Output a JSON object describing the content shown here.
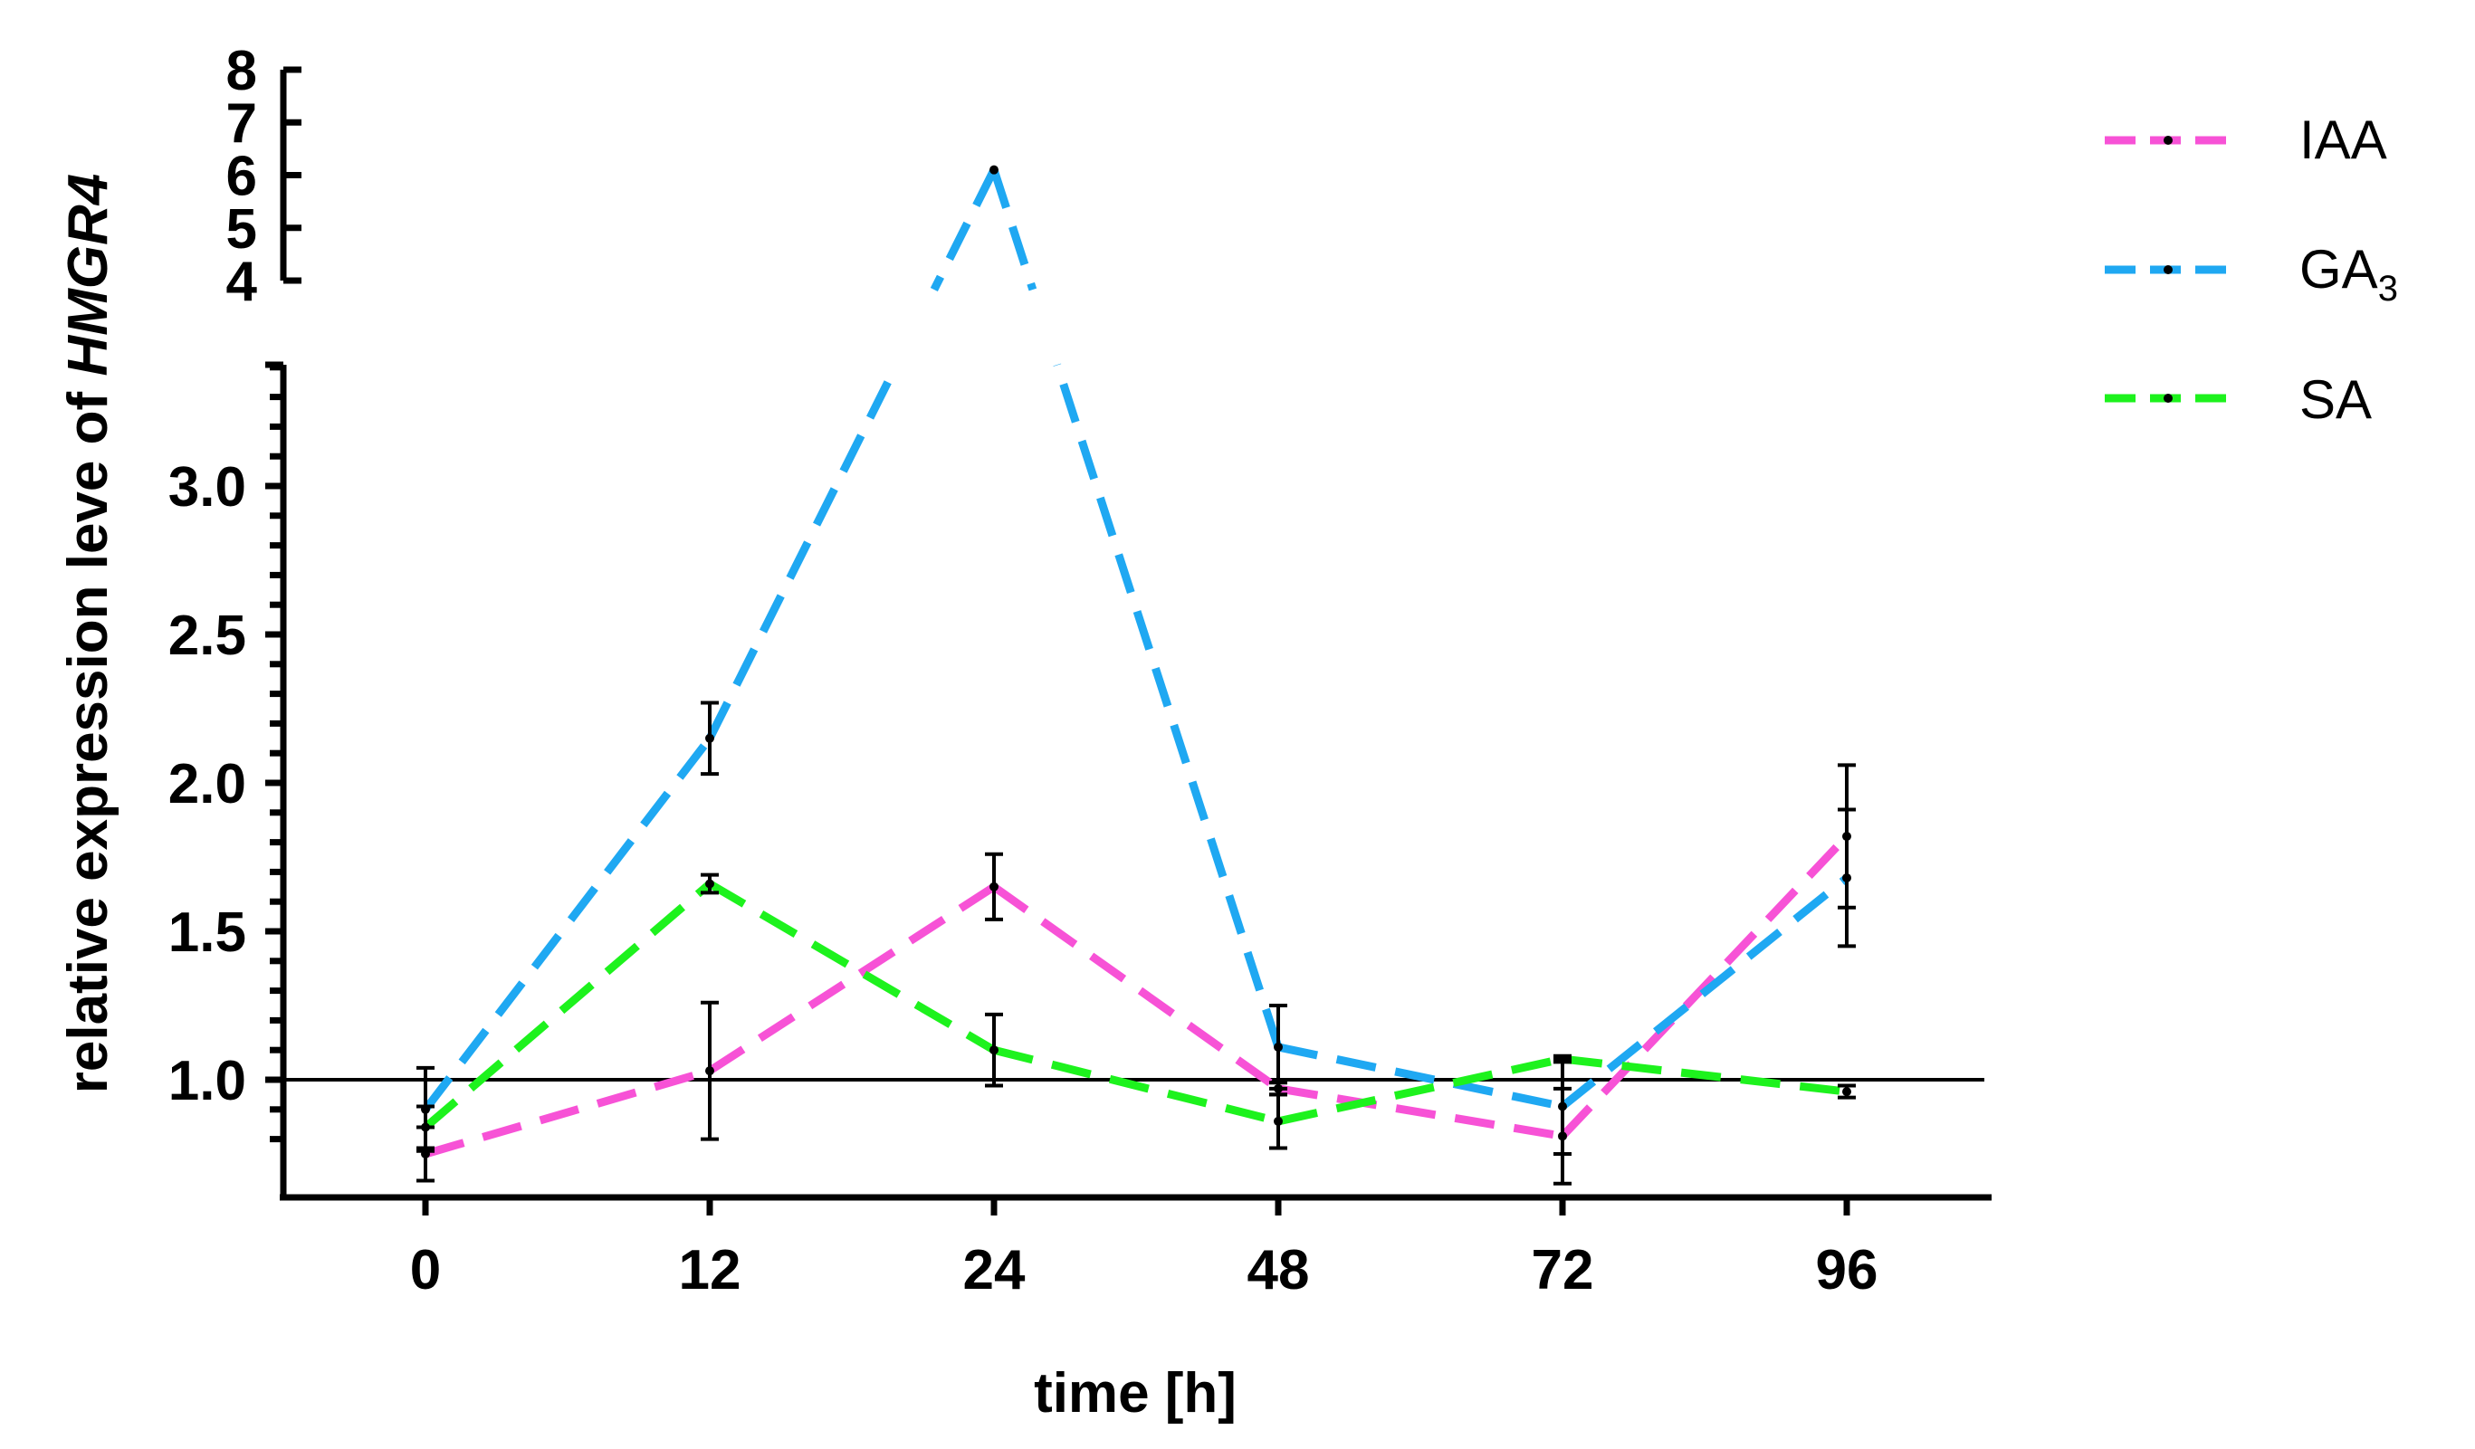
{
  "chart_data": {
    "type": "line",
    "xlabel": "time [h]",
    "ylabel_prefix": "relative expression leve of ",
    "ylabel_gene": "HMGR4",
    "categories": [
      "0",
      "12",
      "24",
      "48",
      "72",
      "96"
    ],
    "ylim_lower": [
      0.7,
      3.4
    ],
    "ylim_upper": [
      4,
      8
    ],
    "y_ticks_lower": [
      "1.0",
      "1.5",
      "2.0",
      "2.5",
      "3.0"
    ],
    "y_ticks_upper": [
      "4",
      "5",
      "6",
      "7",
      "8"
    ],
    "reference_line": 1.0,
    "legend_position": "top-right",
    "series": [
      {
        "name": "IAA",
        "color": "#f752d6",
        "values": [
          0.75,
          1.03,
          1.65,
          0.97,
          0.81,
          1.82
        ],
        "errors": [
          0.09,
          0.23,
          0.11,
          0.02,
          0.16,
          0.24
        ]
      },
      {
        "name": "GA3",
        "name_base": "GA",
        "name_sub": "3",
        "color": "#1fa8f2",
        "values": [
          0.9,
          2.15,
          6.1,
          1.11,
          0.91,
          1.68
        ],
        "errors": [
          0.14,
          0.12,
          0.0,
          0.14,
          0.16,
          0.23
        ]
      },
      {
        "name": "SA",
        "color": "#1df21d",
        "values": [
          0.84,
          1.66,
          1.1,
          0.86,
          1.07,
          0.96
        ],
        "errors": [
          0.07,
          0.03,
          0.12,
          0.09,
          0.01,
          0.02
        ]
      }
    ]
  }
}
